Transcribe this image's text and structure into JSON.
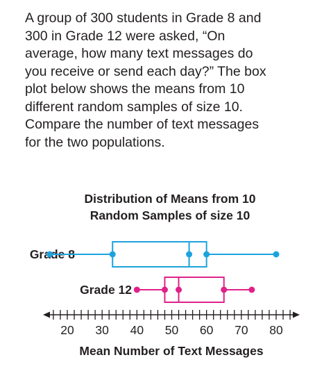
{
  "problem": {
    "lines": [
      "A group of 300 students in Grade 8 and",
      "300 in Grade 12 were asked, “On",
      "average, how many text messages do",
      "you receive or send each day?” The box",
      "plot below shows the means from 10",
      "different random samples of size 10.",
      "Compare the number of text messages",
      "for the two populations."
    ]
  },
  "chart_data": {
    "type": "boxplot",
    "title_lines": [
      "Distribution of Means from 10",
      "Random Samples of size 10"
    ],
    "xlabel": "Mean Number of Text Messages",
    "xlim": [
      15,
      85
    ],
    "xticks": [
      20,
      30,
      40,
      50,
      60,
      70,
      80
    ],
    "xtick_labels": [
      "20",
      "30",
      "40",
      "50",
      "60",
      "70",
      "80"
    ],
    "minor_tick_step": 2,
    "series": [
      {
        "name": "Grade 8",
        "min": 15,
        "q1": 33,
        "median": 55,
        "q3": 60,
        "max": 80,
        "color": "#1ca3dd"
      },
      {
        "name": "Grade 12",
        "min": 40,
        "q1": 48,
        "median": 52,
        "q3": 65,
        "max": 73,
        "color": "#e0218a"
      }
    ]
  }
}
